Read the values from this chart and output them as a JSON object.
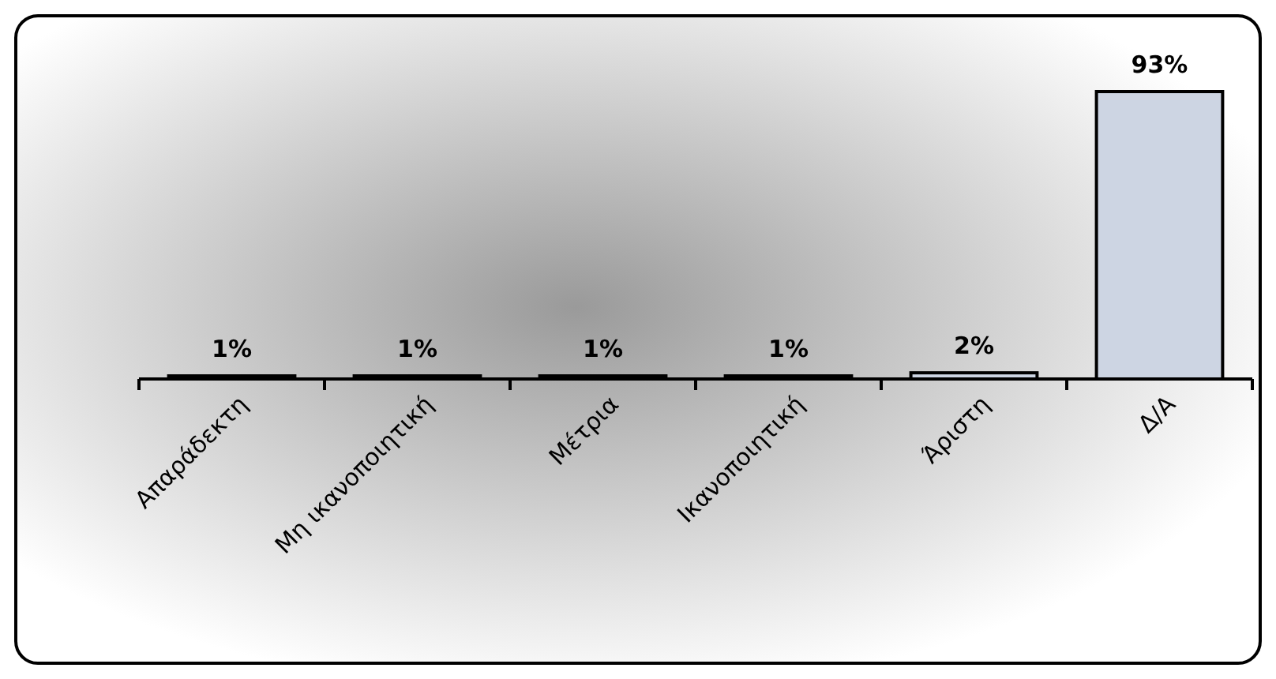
{
  "chart_data": {
    "type": "bar",
    "categories": [
      "Απαράδεκτη",
      "Μη ικανοποιητική",
      "Μέτρια",
      "Ικανοποιητική",
      "Άριστη",
      "Δ/Α"
    ],
    "values": [
      1,
      1,
      1,
      1,
      2,
      93
    ],
    "value_labels": [
      "1%",
      "1%",
      "1%",
      "1%",
      "2%",
      "93%"
    ],
    "color": "#cdd5e3"
  }
}
